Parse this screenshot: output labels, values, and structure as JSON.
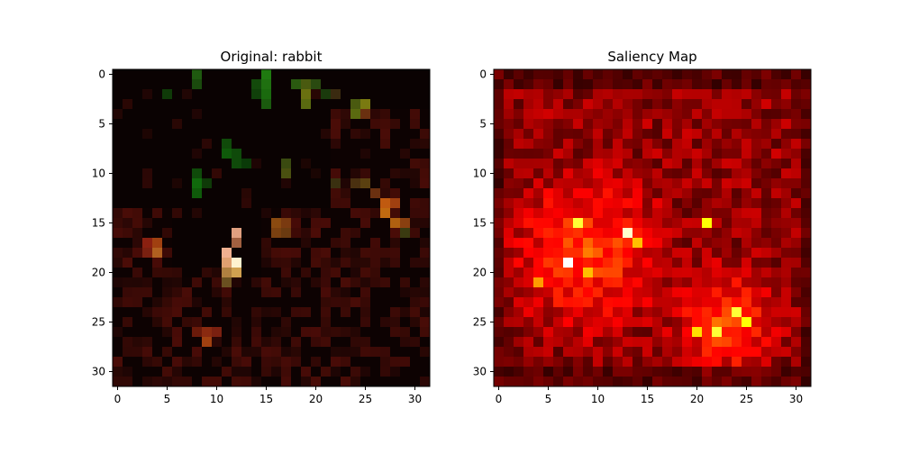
{
  "chart_data": [
    {
      "type": "heatmap",
      "title": "Original: rabbit",
      "xlabel": "",
      "ylabel": "",
      "xlim": [
        -0.5,
        31.5
      ],
      "ylim": [
        31.5,
        -0.5
      ],
      "x_ticks": [
        0,
        5,
        10,
        15,
        20,
        25,
        30
      ],
      "y_ticks": [
        0,
        5,
        10,
        15,
        20,
        25,
        30
      ],
      "grid": false,
      "rows": 32,
      "cols": 32,
      "cell_colors": [
        {
          "row": 0,
          "col": 8,
          "color": "#1f5a10"
        },
        {
          "row": 1,
          "col": 8,
          "color": "#1a4a0d"
        },
        {
          "row": 0,
          "col": 15,
          "color": "#1f7a10"
        },
        {
          "row": 1,
          "col": 15,
          "color": "#1f7010"
        },
        {
          "row": 2,
          "col": 15,
          "color": "#1a6a0e"
        },
        {
          "row": 3,
          "col": 15,
          "color": "#1a5a0e"
        },
        {
          "row": 1,
          "col": 14,
          "color": "#134a0b"
        },
        {
          "row": 2,
          "col": 14,
          "color": "#10400a"
        },
        {
          "row": 1,
          "col": 18,
          "color": "#2a5a10"
        },
        {
          "row": 1,
          "col": 19,
          "color": "#4a5a10"
        },
        {
          "row": 2,
          "col": 19,
          "color": "#6a7010"
        },
        {
          "row": 3,
          "col": 19,
          "color": "#5a6a10"
        },
        {
          "row": 1,
          "col": 20,
          "color": "#2a4a10"
        },
        {
          "row": 2,
          "col": 21,
          "color": "#1a3a0c"
        },
        {
          "row": 2,
          "col": 22,
          "color": "#3a2a10"
        },
        {
          "row": 3,
          "col": 24,
          "color": "#4a5a10"
        },
        {
          "row": 4,
          "col": 24,
          "color": "#5a6a10"
        },
        {
          "row": 3,
          "col": 25,
          "color": "#7a7a10"
        },
        {
          "row": 4,
          "col": 25,
          "color": "#6a3010"
        },
        {
          "row": 2,
          "col": 5,
          "color": "#0f3a08"
        },
        {
          "row": 7,
          "col": 11,
          "color": "#104a0a"
        },
        {
          "row": 8,
          "col": 11,
          "color": "#0f5a0a"
        },
        {
          "row": 8,
          "col": 12,
          "color": "#0f4a0a"
        },
        {
          "row": 9,
          "col": 12,
          "color": "#0f4a0a"
        },
        {
          "row": 9,
          "col": 13,
          "color": "#0a3a08"
        },
        {
          "row": 10,
          "col": 8,
          "color": "#0f4a0a"
        },
        {
          "row": 11,
          "col": 8,
          "color": "#106a0c"
        },
        {
          "row": 12,
          "col": 8,
          "color": "#0f5a0a"
        },
        {
          "row": 11,
          "col": 9,
          "color": "#0f3a08"
        },
        {
          "row": 9,
          "col": 17,
          "color": "#3a4a10"
        },
        {
          "row": 10,
          "col": 17,
          "color": "#4a5010"
        },
        {
          "row": 11,
          "col": 22,
          "color": "#3a3010"
        },
        {
          "row": 11,
          "col": 24,
          "color": "#4a3010"
        },
        {
          "row": 11,
          "col": 25,
          "color": "#5a4010"
        },
        {
          "row": 12,
          "col": 26,
          "color": "#6a3010"
        },
        {
          "row": 13,
          "col": 27,
          "color": "#c05a10"
        },
        {
          "row": 14,
          "col": 27,
          "color": "#c06a10"
        },
        {
          "row": 13,
          "col": 28,
          "color": "#a04010"
        },
        {
          "row": 15,
          "col": 28,
          "color": "#b06010"
        },
        {
          "row": 15,
          "col": 29,
          "color": "#8a4010"
        },
        {
          "row": 16,
          "col": 29,
          "color": "#3a3a10"
        },
        {
          "row": 16,
          "col": 12,
          "color": "#e0a080"
        },
        {
          "row": 17,
          "col": 12,
          "color": "#a06040"
        },
        {
          "row": 18,
          "col": 11,
          "color": "#f0b090"
        },
        {
          "row": 19,
          "col": 11,
          "color": "#e0a070"
        },
        {
          "row": 19,
          "col": 12,
          "color": "#fff2d0"
        },
        {
          "row": 20,
          "col": 12,
          "color": "#d0a050"
        },
        {
          "row": 20,
          "col": 11,
          "color": "#b08040"
        },
        {
          "row": 21,
          "col": 11,
          "color": "#6a5020"
        },
        {
          "row": 15,
          "col": 16,
          "color": "#8a4a10"
        },
        {
          "row": 15,
          "col": 17,
          "color": "#7a3a10"
        },
        {
          "row": 16,
          "col": 16,
          "color": "#7a4010"
        },
        {
          "row": 16,
          "col": 17,
          "color": "#6a3a10"
        },
        {
          "row": 17,
          "col": 3,
          "color": "#8a2010"
        },
        {
          "row": 17,
          "col": 4,
          "color": "#a04010"
        },
        {
          "row": 18,
          "col": 4,
          "color": "#b06020"
        },
        {
          "row": 18,
          "col": 3,
          "color": "#7a2010"
        },
        {
          "row": 26,
          "col": 8,
          "color": "#6a1a0a"
        },
        {
          "row": 26,
          "col": 9,
          "color": "#8a2a10"
        },
        {
          "row": 27,
          "col": 9,
          "color": "#a04010"
        },
        {
          "row": 26,
          "col": 10,
          "color": "#7a2010"
        }
      ]
    },
    {
      "type": "heatmap",
      "title": "Saliency Map",
      "xlabel": "",
      "ylabel": "",
      "xlim": [
        -0.5,
        31.5
      ],
      "ylim": [
        31.5,
        -0.5
      ],
      "x_ticks": [
        0,
        5,
        10,
        15,
        20,
        25,
        30
      ],
      "y_ticks": [
        0,
        5,
        10,
        15,
        20,
        25,
        30
      ],
      "grid": false,
      "colormap": "hot",
      "rows": 32,
      "cols": 32,
      "hotspots": [
        {
          "row": 19,
          "col": 7,
          "value": 1.0
        },
        {
          "row": 16,
          "col": 13,
          "value": 0.95
        },
        {
          "row": 15,
          "col": 8,
          "value": 0.8
        },
        {
          "row": 15,
          "col": 21,
          "value": 0.75
        },
        {
          "row": 24,
          "col": 24,
          "value": 0.8
        },
        {
          "row": 25,
          "col": 25,
          "value": 0.75
        },
        {
          "row": 26,
          "col": 22,
          "value": 0.8
        },
        {
          "row": 26,
          "col": 20,
          "value": 0.7
        },
        {
          "row": 17,
          "col": 14,
          "value": 0.65
        },
        {
          "row": 20,
          "col": 9,
          "value": 0.65
        },
        {
          "row": 21,
          "col": 4,
          "value": 0.6
        }
      ]
    }
  ]
}
